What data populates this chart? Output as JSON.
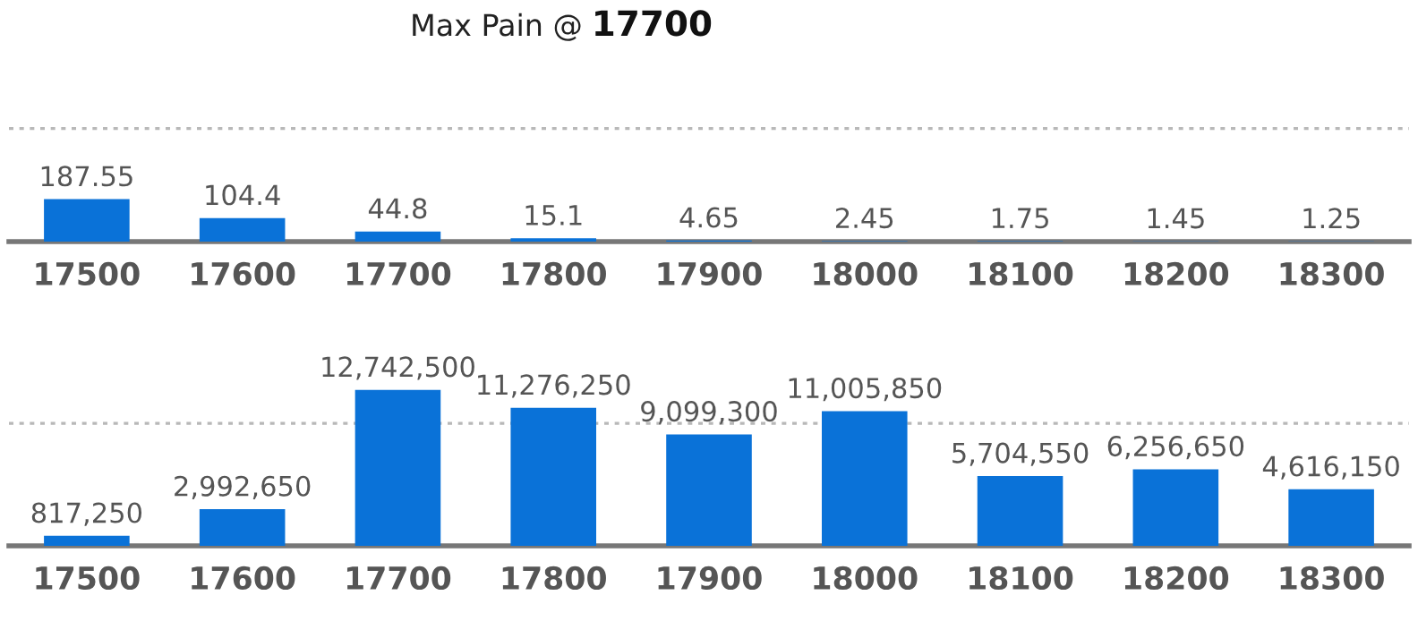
{
  "chart_data": [
    {
      "type": "bar",
      "title": "Max Pain @ 17700",
      "categories": [
        "17500",
        "17600",
        "17700",
        "17800",
        "17900",
        "18000",
        "18100",
        "18200",
        "18300"
      ],
      "values": [
        187.55,
        104.4,
        44.8,
        15.1,
        4.65,
        2.45,
        1.75,
        1.45,
        1.25
      ],
      "value_labels": [
        "187.55",
        "104.4",
        "44.8",
        "15.1",
        "4.65",
        "2.45",
        "1.75",
        "1.45",
        "1.25"
      ],
      "color": "#0a72d8",
      "ref_lines": [
        {
          "axis": "y",
          "value": 500,
          "color": "#b8b8b8",
          "line_style": "dotted"
        }
      ],
      "tick_labels": "x"
    },
    {
      "type": "bar",
      "categories": [
        "17500",
        "17600",
        "17700",
        "17800",
        "17900",
        "18000",
        "18100",
        "18200",
        "18300"
      ],
      "values": [
        817250,
        2992650,
        12742500,
        11276250,
        9099300,
        11005850,
        5704550,
        6256650,
        4616150
      ],
      "value_labels": [
        "817,250",
        "2,992,650",
        "12,742,500",
        "11,276,250",
        "9,099,300",
        "11,005,850",
        "5,704,550",
        "6,256,650",
        "4,616,150"
      ],
      "color": "#0a72d8",
      "ref_lines": [
        {
          "axis": "y",
          "value": 10000000,
          "color": "#b8b8b8",
          "line_style": "dotted"
        }
      ],
      "tick_labels": "x"
    }
  ]
}
